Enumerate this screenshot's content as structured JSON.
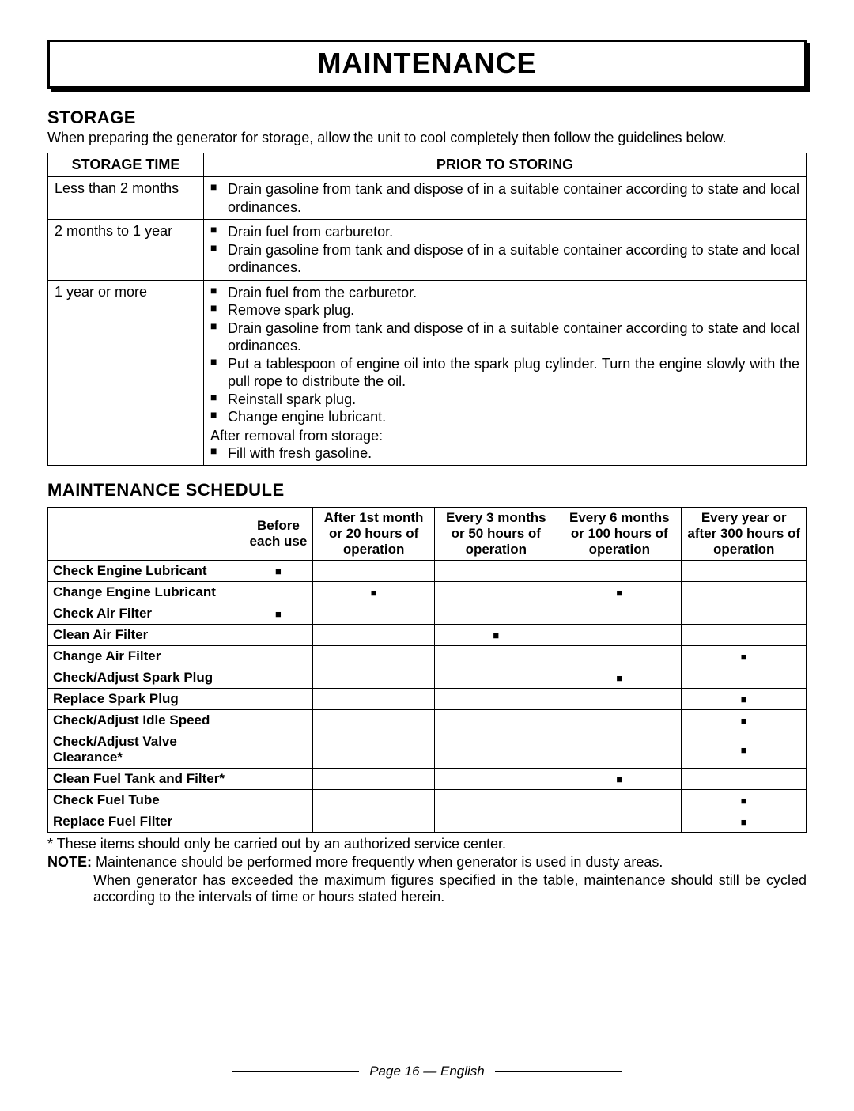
{
  "title": "MAINTENANCE",
  "storage": {
    "heading": "STORAGE",
    "intro": "When preparing the generator for storage, allow the unit to cool completely then follow the guidelines below.",
    "header_time": "STORAGE TIME",
    "header_prior": "PRIOR TO STORING",
    "rows": [
      {
        "time": "Less than 2 months",
        "bullets": [
          "Drain gasoline from tank and dispose of in a suitable container according to state and local ordinances."
        ]
      },
      {
        "time": "2 months to 1 year",
        "bullets": [
          "Drain fuel from carburetor.",
          "Drain gasoline from tank and dispose of in a suitable container according to state and local ordinances."
        ]
      },
      {
        "time": "1 year or more",
        "bullets_a": [
          "Drain fuel from the carburetor.",
          "Remove spark plug.",
          "Drain gasoline from tank and dispose of in a suitable container according to state and local ordinances.",
          "Put a tablespoon of engine oil into the spark plug cylinder. Turn the engine slowly with the pull rope to distribute the oil.",
          "Reinstall spark plug.",
          "Change engine lubricant."
        ],
        "after_text": "After removal from storage:",
        "bullets_b": [
          "Fill with fresh gasoline."
        ]
      }
    ]
  },
  "schedule": {
    "heading": "MAINTENANCE SCHEDULE",
    "columns": [
      "Before each use",
      "After 1st month or 20 hours of operation",
      "Every 3 months or 50 hours of operation",
      "Every 6 months or 100 hours of operation",
      "Every year or after 300 hours of operation"
    ],
    "rows": [
      {
        "label": "Check Engine Lubricant",
        "marks": [
          true,
          false,
          false,
          false,
          false
        ]
      },
      {
        "label": "Change Engine Lubricant",
        "marks": [
          false,
          true,
          false,
          true,
          false
        ]
      },
      {
        "label": "Check Air Filter",
        "marks": [
          true,
          false,
          false,
          false,
          false
        ]
      },
      {
        "label": "Clean Air Filter",
        "marks": [
          false,
          false,
          true,
          false,
          false
        ]
      },
      {
        "label": "Change Air Filter",
        "marks": [
          false,
          false,
          false,
          false,
          true
        ]
      },
      {
        "label": "Check/Adjust Spark Plug",
        "marks": [
          false,
          false,
          false,
          true,
          false
        ]
      },
      {
        "label": "Replace Spark Plug",
        "marks": [
          false,
          false,
          false,
          false,
          true
        ]
      },
      {
        "label": "Check/Adjust Idle Speed",
        "marks": [
          false,
          false,
          false,
          false,
          true
        ]
      },
      {
        "label": "Check/Adjust Valve Clearance*",
        "marks": [
          false,
          false,
          false,
          false,
          true
        ]
      },
      {
        "label": "Clean Fuel Tank and Filter*",
        "marks": [
          false,
          false,
          false,
          true,
          false
        ]
      },
      {
        "label": "Check Fuel Tube",
        "marks": [
          false,
          false,
          false,
          false,
          true
        ]
      },
      {
        "label": "Replace Fuel Filter",
        "marks": [
          false,
          false,
          false,
          false,
          true
        ]
      }
    ],
    "footnote": "* These items should only be carried out by an authorized service center.",
    "note_label": "NOTE:",
    "note1": " Maintenance should be performed more frequently when generator is used in dusty areas.",
    "note2": "When generator has exceeded the maximum figures specified in the table, maintenance should still be cycled according to the intervals of time or hours stated herein."
  },
  "footer": {
    "text": "Page 16  —  English"
  }
}
